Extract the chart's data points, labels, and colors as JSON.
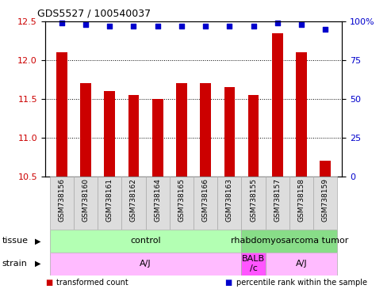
{
  "title": "GDS5527 / 100540037",
  "samples": [
    "GSM738156",
    "GSM738160",
    "GSM738161",
    "GSM738162",
    "GSM738164",
    "GSM738165",
    "GSM738166",
    "GSM738163",
    "GSM738155",
    "GSM738157",
    "GSM738158",
    "GSM738159"
  ],
  "bar_values": [
    12.1,
    11.7,
    11.6,
    11.55,
    11.5,
    11.7,
    11.7,
    11.65,
    11.55,
    12.35,
    12.1,
    10.7
  ],
  "percentile_values": [
    99,
    98,
    97,
    97,
    97,
    97,
    97,
    97,
    97,
    99,
    98,
    95
  ],
  "ylim_left": [
    10.5,
    12.5
  ],
  "ylim_right": [
    0,
    100
  ],
  "yticks_left": [
    10.5,
    11.0,
    11.5,
    12.0,
    12.5
  ],
  "yticks_right": [
    0,
    25,
    50,
    75,
    100
  ],
  "ytick_right_labels": [
    "0",
    "25",
    "50",
    "75",
    "100%"
  ],
  "bar_color": "#cc0000",
  "dot_color": "#0000cc",
  "grid_color": "#000000",
  "tissue_groups": [
    {
      "label": "control",
      "start": 0,
      "end": 8,
      "color": "#b3ffb3"
    },
    {
      "label": "rhabdomyosarcoma tumor",
      "start": 8,
      "end": 12,
      "color": "#88dd88"
    }
  ],
  "strain_groups": [
    {
      "label": "A/J",
      "start": 0,
      "end": 8,
      "color": "#ffbbff"
    },
    {
      "label": "BALB\n/c",
      "start": 8,
      "end": 9,
      "color": "#ff55ff"
    },
    {
      "label": "A/J",
      "start": 9,
      "end": 12,
      "color": "#ffbbff"
    }
  ],
  "legend_items": [
    {
      "label": "transformed count",
      "color": "#cc0000"
    },
    {
      "label": "percentile rank within the sample",
      "color": "#0000cc"
    }
  ],
  "label_tissue": "tissue",
  "label_strain": "strain",
  "bar_width": 0.45,
  "cell_color": "#dddddd",
  "cell_edge_color": "#aaaaaa"
}
